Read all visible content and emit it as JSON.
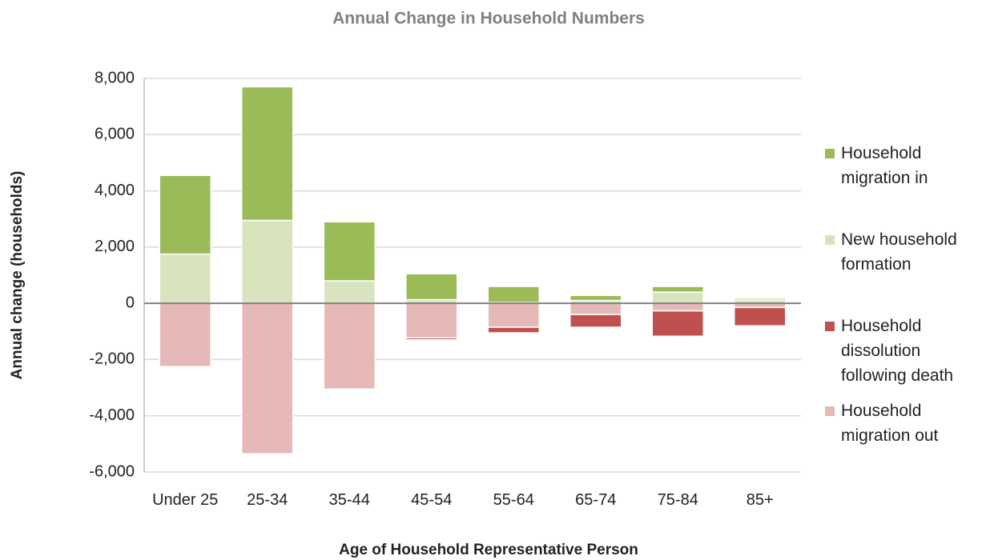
{
  "chart_data": {
    "type": "bar",
    "stacked": true,
    "title": "Annual Change in Household Numbers",
    "x_label": "Age of Household Representative Person",
    "y_label": "Annual change (households)",
    "categories": [
      "Under 25",
      "25-34",
      "35-44",
      "45-54",
      "55-64",
      "65-74",
      "75-84",
      "85+"
    ],
    "series": [
      {
        "name": "Household migration in",
        "color": "#9bbb59",
        "values": [
          2800,
          4750,
          2100,
          920,
          570,
          180,
          200,
          60
        ]
      },
      {
        "name": "New household formation",
        "color": "#d7e4bd",
        "values": [
          1750,
          2950,
          800,
          130,
          30,
          100,
          400,
          120
        ]
      },
      {
        "name": "Household dissolution following death",
        "color": "#c0504d",
        "values": [
          0,
          0,
          0,
          -70,
          -200,
          -450,
          -900,
          -650
        ]
      },
      {
        "name": "Household migration out",
        "color": "#e6b9b8",
        "values": [
          -2250,
          -5350,
          -3050,
          -1230,
          -850,
          -400,
          -270,
          -150
        ]
      }
    ],
    "ylim": [
      -6000,
      8000
    ],
    "yticks": [
      {
        "value": -6000,
        "label": "-6,000"
      },
      {
        "value": -4000,
        "label": "-4,000"
      },
      {
        "value": -2000,
        "label": "-2,000"
      },
      0,
      {
        "value": 2000,
        "label": "2,000"
      },
      {
        "value": 4000,
        "label": "4,000"
      },
      {
        "value": 6000,
        "label": "6,000"
      },
      {
        "value": 8000,
        "label": "8,000"
      }
    ],
    "grid": true,
    "legend": "right"
  }
}
